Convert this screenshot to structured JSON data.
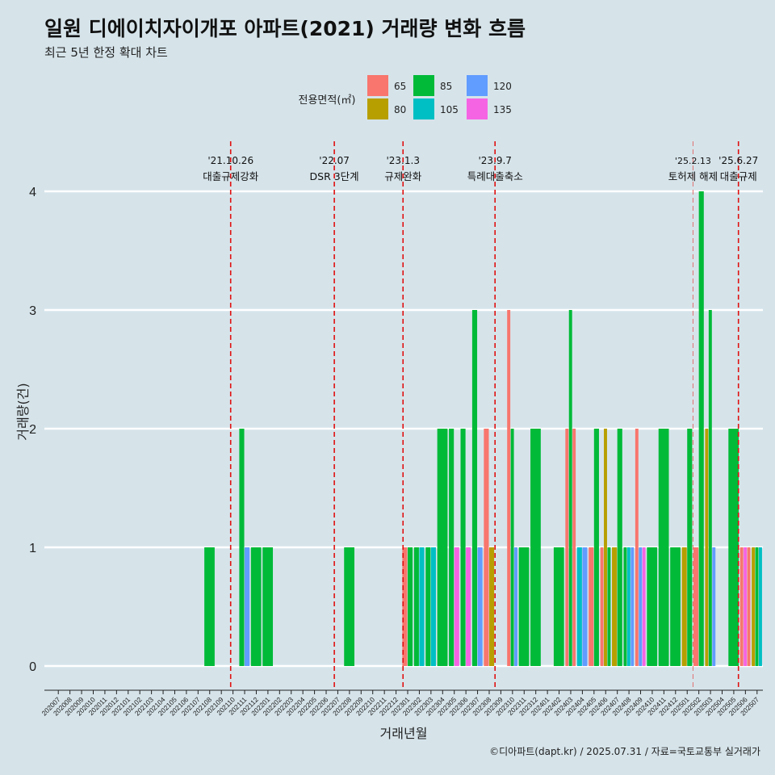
{
  "chart_data": {
    "type": "bar",
    "title": "일원 디에이치자이개포 아파트(2021) 거래량 변화 흐름",
    "subtitle": "최근 5년 한정 확대 차트",
    "caption": "©디아파트(dapt.kr) / 2025.07.31 / 자료=국토교통부 실거래가",
    "xlabel": "거래년월",
    "ylabel": "거래량(건)",
    "ylim": [
      -0.2,
      4.4
    ],
    "yticks": [
      0,
      1,
      2,
      3,
      4
    ],
    "grid": true,
    "legend": {
      "title": "전용면적(㎡)",
      "position": "top",
      "entries": [
        {
          "name": "65",
          "color": "#f8766d"
        },
        {
          "name": "80",
          "color": "#b79f00"
        },
        {
          "name": "85",
          "color": "#00ba38"
        },
        {
          "name": "105",
          "color": "#00bfc4"
        },
        {
          "name": "120",
          "color": "#619cff"
        },
        {
          "name": "135",
          "color": "#f564e3"
        }
      ]
    },
    "months": [
      "202007",
      "202008",
      "202009",
      "202010",
      "202011",
      "202012",
      "202101",
      "202102",
      "202103",
      "202104",
      "202105",
      "202106",
      "202107",
      "202108",
      "202109",
      "202110",
      "202111",
      "202112",
      "202201",
      "202202",
      "202203",
      "202204",
      "202205",
      "202206",
      "202207",
      "202208",
      "202209",
      "202210",
      "202211",
      "202212",
      "202301",
      "202302",
      "202303",
      "202304",
      "202305",
      "202306",
      "202307",
      "202308",
      "202309",
      "202310",
      "202311",
      "202312",
      "202401",
      "202402",
      "202403",
      "202404",
      "202405",
      "202406",
      "202407",
      "202408",
      "202409",
      "202410",
      "202411",
      "202412",
      "202501",
      "202502",
      "202503",
      "202504",
      "202505",
      "202506",
      "202507"
    ],
    "x_tick_labels": [
      "202007",
      "202008",
      "202009",
      "202010",
      "202011",
      "202012",
      "202101",
      "202102",
      "202103",
      "202104",
      "202105",
      "202106",
      "202107",
      "202108",
      "202109",
      "202110",
      "202111",
      "202112",
      "202201",
      "202202",
      "202203",
      "202204",
      "202205",
      "202206",
      "202207",
      "202208",
      "202209",
      "202210",
      "202211",
      "202212",
      "202301",
      "202302",
      "202303",
      "202304",
      "202305",
      "202306",
      "202307",
      "202308",
      "202309",
      "202310",
      "202311",
      "202312",
      "202401",
      "202402",
      "202403",
      "202404",
      "202405",
      "202406",
      "202407",
      "202408",
      "202409",
      "202410",
      "202411",
      "202412",
      "202501",
      "202502",
      "202503",
      "202504",
      "202505",
      "202506",
      "202507"
    ],
    "bars": [
      {
        "month": "202108",
        "values": {
          "85": 1
        }
      },
      {
        "month": "202111",
        "values": {
          "85": 2,
          "120": 1
        }
      },
      {
        "month": "202112",
        "values": {
          "85": 1
        }
      },
      {
        "month": "202201",
        "values": {
          "85": 1
        }
      },
      {
        "month": "202208",
        "values": {
          "85": 1
        }
      },
      {
        "month": "202301",
        "values": {
          "65": 1,
          "85": 1
        }
      },
      {
        "month": "202302",
        "values": {
          "85": 1,
          "105": 1
        }
      },
      {
        "month": "202303",
        "values": {
          "85": 1,
          "105": 1
        }
      },
      {
        "month": "202304",
        "values": {
          "85": 2
        }
      },
      {
        "month": "202305",
        "values": {
          "85": 2,
          "135": 1
        }
      },
      {
        "month": "202306",
        "values": {
          "85": 2,
          "135": 1
        }
      },
      {
        "month": "202307",
        "values": {
          "85": 3,
          "120": 1
        }
      },
      {
        "month": "202308",
        "values": {
          "65": 2,
          "80": 1
        }
      },
      {
        "month": "202310",
        "values": {
          "65": 3,
          "85": 2,
          "120": 1
        }
      },
      {
        "month": "202311",
        "values": {
          "85": 1
        }
      },
      {
        "month": "202312",
        "values": {
          "85": 2
        }
      },
      {
        "month": "202402",
        "values": {
          "85": 1
        }
      },
      {
        "month": "202403",
        "values": {
          "65": 2,
          "85": 3,
          "65b": 2
        }
      },
      {
        "month": "202404",
        "values": {
          "105": 1,
          "120": 1
        }
      },
      {
        "month": "202405",
        "values": {
          "65": 1,
          "85": 2
        }
      },
      {
        "month": "202406",
        "values": {
          "65": 1,
          "80": 2,
          "85": 1
        }
      },
      {
        "month": "202407",
        "values": {
          "80": 1,
          "85": 2
        }
      },
      {
        "month": "202408",
        "values": {
          "105": 1,
          "85": 1,
          "120": 1
        }
      },
      {
        "month": "202409",
        "values": {
          "135": 1,
          "65": 2,
          "120": 1
        }
      },
      {
        "month": "202410",
        "values": {
          "85": 1
        }
      },
      {
        "month": "202411",
        "values": {
          "85": 2
        }
      },
      {
        "month": "202412",
        "values": {
          "85": 1
        }
      },
      {
        "month": "202501",
        "values": {
          "80": 1,
          "85": 2
        }
      },
      {
        "month": "202502",
        "values": {
          "65": 1,
          "85": 4
        }
      },
      {
        "month": "202503",
        "values": {
          "80": 2,
          "85": 3,
          "120": 1
        }
      },
      {
        "month": "202505",
        "values": {
          "85": 2
        }
      },
      {
        "month": "202506",
        "values": {
          "65": 1,
          "135": 1,
          "65b": 1
        }
      },
      {
        "month": "202507",
        "values": {
          "80": 1,
          "85": 1,
          "105": 1
        }
      }
    ],
    "annotations": [
      {
        "month_pos": 15.3,
        "date": "'21.10.26",
        "label": "대출규제강화"
      },
      {
        "month_pos": 24.2,
        "date": "'22.07",
        "label": "DSR 3단계"
      },
      {
        "month_pos": 30.1,
        "date": "'23.1.3",
        "label": "규제완화"
      },
      {
        "month_pos": 38.0,
        "date": "'23.9.7",
        "label": "특례대출축소"
      },
      {
        "month_pos": 55.0,
        "date": "'25.2.13",
        "label": "토허제 해제",
        "faint": true
      },
      {
        "month_pos": 58.9,
        "date": "'25.6.27",
        "label": "대출규제"
      }
    ]
  }
}
